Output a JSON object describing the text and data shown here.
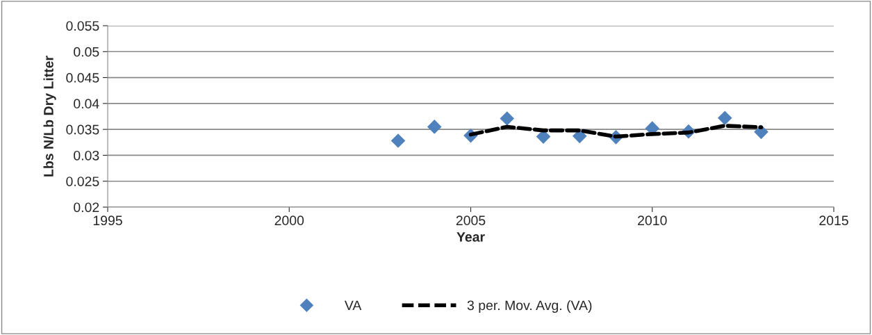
{
  "chart_data": {
    "type": "scatter",
    "xlabel": "Year",
    "ylabel": "Lbs N/Lb Dry Litter",
    "x": [
      2003,
      2004,
      2005,
      2006,
      2007,
      2008,
      2009,
      2010,
      2011,
      2012,
      2013
    ],
    "series": [
      {
        "name": "VA",
        "color": "#4f81bd",
        "marker": "diamond",
        "values": [
          0.0328,
          0.0355,
          0.0338,
          0.0371,
          0.0336,
          0.0337,
          0.0335,
          0.0352,
          0.0346,
          0.0372,
          0.0345
        ]
      },
      {
        "name": "3 per. Mov. Avg. (VA)",
        "type": "line",
        "color": "#000000",
        "line_style": "dashed",
        "marker": "none",
        "values": [
          null,
          null,
          0.034,
          0.0355,
          0.0348,
          0.0348,
          0.0336,
          0.0341,
          0.0344,
          0.0357,
          0.0354
        ]
      }
    ],
    "xlim": [
      1995,
      2015
    ],
    "xticks": [
      1995,
      2000,
      2005,
      2010,
      2015
    ],
    "ylim": [
      0.02,
      0.055
    ],
    "yticks": [
      0.02,
      0.025,
      0.03,
      0.035,
      0.04,
      0.045,
      0.05,
      0.055
    ],
    "grid": "y",
    "legend": "bottom"
  }
}
